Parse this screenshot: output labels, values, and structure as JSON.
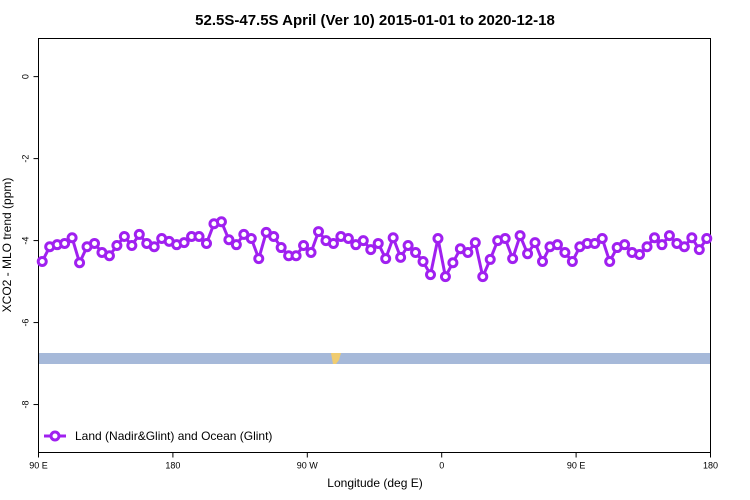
{
  "chart_data": {
    "type": "line",
    "title": "52.5S-47.5S April (Ver 10)   2015-01-01 to 2020-12-18",
    "x_label": "Longitude (deg E)",
    "y_label": "XCO2 - MLO trend (ppm)",
    "xlim": [
      90,
      540
    ],
    "xticks": [
      {
        "value": 90,
        "label": "90 E"
      },
      {
        "value": 180,
        "label": "180"
      },
      {
        "value": 270,
        "label": "90 W"
      },
      {
        "value": 360,
        "label": "0"
      },
      {
        "value": 450,
        "label": "90 E"
      },
      {
        "value": 540,
        "label": "180"
      }
    ],
    "ylim": [
      -9.17,
      0.93
    ],
    "yticks": [
      0,
      -2,
      -4,
      -6,
      -8
    ],
    "legend": "bottom-left",
    "x": [
      92.5,
      97.5,
      102.5,
      107.5,
      112.5,
      117.5,
      122.5,
      127.5,
      132.5,
      137.5,
      142.5,
      147.5,
      152.5,
      157.5,
      162.5,
      167.5,
      172.5,
      177.5,
      182.5,
      187.5,
      192.5,
      197.5,
      202.5,
      207.5,
      212.5,
      217.5,
      222.5,
      227.5,
      232.5,
      237.5,
      242.5,
      247.5,
      252.5,
      257.5,
      262.5,
      267.5,
      272.5,
      277.5,
      282.5,
      287.5,
      292.5,
      297.5,
      302.5,
      307.5,
      312.5,
      317.5,
      322.5,
      327.5,
      332.5,
      337.5,
      342.5,
      347.5,
      352.5,
      357.5,
      362.5,
      367.5,
      372.5,
      377.5,
      382.5,
      387.5,
      392.5,
      397.5,
      402.5,
      407.5,
      412.5,
      417.5,
      422.5,
      427.5,
      432.5,
      437.5,
      442.5,
      447.5,
      452.5,
      457.5,
      462.5,
      467.5,
      472.5,
      477.5,
      482.5,
      487.5,
      492.5,
      497.5,
      502.5,
      507.5,
      512.5,
      517.5,
      522.5,
      527.5,
      532.5,
      537.5
    ],
    "series": [
      {
        "name": "Land (Nadir&Glint) and Ocean (Glint)",
        "color": "#a020f0",
        "values": [
          -4.51,
          -4.15,
          -4.1,
          -4.07,
          -3.93,
          -4.54,
          -4.15,
          -4.07,
          -4.29,
          -4.37,
          -4.12,
          -3.9,
          -4.12,
          -3.85,
          -4.07,
          -4.15,
          -3.95,
          -4.02,
          -4.1,
          -4.05,
          -3.9,
          -3.9,
          -4.07,
          -3.59,
          -3.54,
          -3.98,
          -4.1,
          -3.85,
          -3.95,
          -4.44,
          -3.8,
          -3.9,
          -4.17,
          -4.37,
          -4.37,
          -4.12,
          -4.29,
          -3.78,
          -4.0,
          -4.07,
          -3.9,
          -3.95,
          -4.1,
          -4.0,
          -4.22,
          -4.07,
          -4.44,
          -3.93,
          -4.41,
          -4.12,
          -4.29,
          -4.51,
          -4.83,
          -3.95,
          -4.88,
          -4.54,
          -4.2,
          -4.29,
          -4.05,
          -4.88,
          -4.46,
          -4.0,
          -3.95,
          -4.44,
          -3.88,
          -4.32,
          -4.05,
          -4.51,
          -4.15,
          -4.1,
          -4.29,
          -4.51,
          -4.15,
          -4.07,
          -4.07,
          -3.95,
          -4.51,
          -4.17,
          -4.1,
          -4.29,
          -4.34,
          -4.15,
          -3.93,
          -4.1,
          -3.88,
          -4.07,
          -4.15,
          -3.93,
          -4.22,
          -3.95
        ]
      }
    ]
  }
}
